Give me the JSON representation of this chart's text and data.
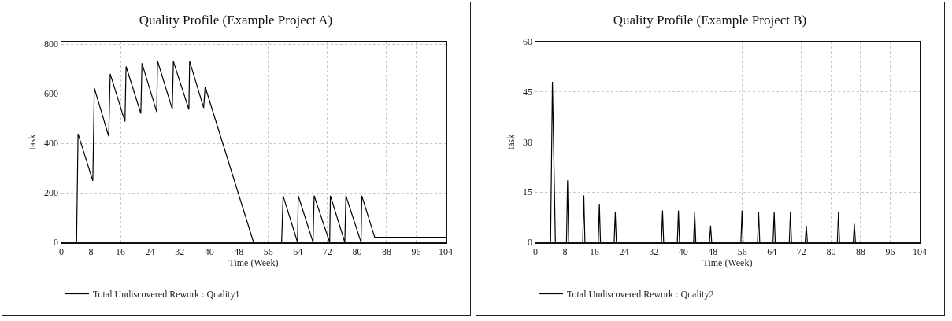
{
  "chart_data": [
    {
      "type": "line",
      "title": "Quality Profile (Example Project A)",
      "xlabel": "Time (Week)",
      "ylabel": "task",
      "x": [
        0,
        4.1,
        4.5,
        8.5,
        8.9,
        12.8,
        13.2,
        17.2,
        17.5,
        21.5,
        21.8,
        25.8,
        26.0,
        30.0,
        30.3,
        34.5,
        34.7,
        38.5,
        38.9,
        52.0,
        59.6,
        60.0,
        63.9,
        64.1,
        68.1,
        68.4,
        72.6,
        72.8,
        76.7,
        77.0,
        81.1,
        81.3,
        84.8,
        104
      ],
      "series": [
        {
          "name": "Total Undiscovered Rework : Quality1",
          "color": "#000000",
          "values": [
            0,
            0,
            438,
            248,
            623,
            428,
            680,
            488,
            710,
            520,
            723,
            526,
            733,
            538,
            731,
            536,
            731,
            543,
            628,
            0,
            0,
            188,
            0,
            188,
            0,
            188,
            0,
            188,
            0,
            188,
            0,
            188,
            20,
            20
          ]
        }
      ],
      "xlim": [
        0,
        104
      ],
      "xticks": [
        0,
        8,
        16,
        24,
        32,
        40,
        48,
        56,
        64,
        72,
        80,
        88,
        96,
        104
      ],
      "ylim": [
        0,
        810
      ],
      "yticks": [
        0,
        200,
        400,
        600,
        800
      ],
      "grid": true,
      "legend": "bottom",
      "line_style": "solid"
    },
    {
      "type": "line",
      "title": "Quality Profile (Example Project B)",
      "xlabel": "Time (Week)",
      "ylabel": "task",
      "x": [
        0,
        4.1,
        4.6,
        5.4,
        8.4,
        8.7,
        9.0,
        12.8,
        13.1,
        13.4,
        17.0,
        17.3,
        17.6,
        21.3,
        21.6,
        21.9,
        34.1,
        34.4,
        34.7,
        38.4,
        38.7,
        39.0,
        42.8,
        43.1,
        43.4,
        47.1,
        47.4,
        47.7,
        55.6,
        55.9,
        56.2,
        60.1,
        60.4,
        60.7,
        64.3,
        64.6,
        64.9,
        68.7,
        69.0,
        69.3,
        73.0,
        73.3,
        73.6,
        81.7,
        82.0,
        82.3,
        86.0,
        86.3,
        86.6,
        104
      ],
      "series": [
        {
          "name": "Total Undiscovered Rework : Quality2",
          "color": "#000000",
          "values": [
            0,
            0,
            48,
            0,
            0,
            18.5,
            0,
            0,
            14,
            0,
            0,
            11.5,
            0,
            0,
            9,
            0,
            0,
            9.5,
            0,
            0,
            9.5,
            0,
            0,
            9,
            0,
            0,
            5,
            0,
            0,
            9.5,
            0,
            0,
            9,
            0,
            0,
            9,
            0,
            0,
            9,
            0,
            0,
            5,
            0,
            0,
            9,
            0,
            0,
            5.5,
            0,
            0
          ]
        }
      ],
      "xlim": [
        0,
        104
      ],
      "xticks": [
        0,
        8,
        16,
        24,
        32,
        40,
        48,
        56,
        64,
        72,
        80,
        88,
        96,
        104
      ],
      "ylim": [
        0,
        60
      ],
      "yticks": [
        0,
        15,
        30,
        45,
        60
      ],
      "grid": true,
      "legend": "bottom",
      "line_style": "solid"
    }
  ]
}
